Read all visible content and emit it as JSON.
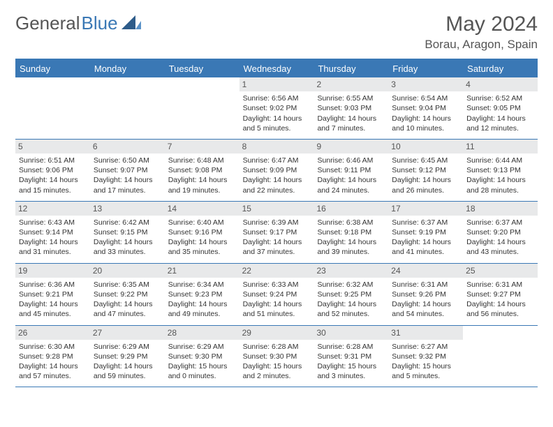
{
  "logo": {
    "part1": "General",
    "part2": "Blue"
  },
  "title": "May 2024",
  "location": "Borau, Aragon, Spain",
  "colors": {
    "header_bg": "#3a78b5",
    "daynum_bg": "#e8e9ea",
    "text": "#555555",
    "body_text": "#333333",
    "bg": "#ffffff"
  },
  "typography": {
    "title_fontsize": 30,
    "location_fontsize": 17,
    "dayheader_fontsize": 13,
    "daynum_fontsize": 12,
    "cell_fontsize": 10.5
  },
  "day_names": [
    "Sunday",
    "Monday",
    "Tuesday",
    "Wednesday",
    "Thursday",
    "Friday",
    "Saturday"
  ],
  "weeks": [
    [
      {
        "empty": true
      },
      {
        "empty": true
      },
      {
        "empty": true
      },
      {
        "num": "1",
        "sunrise": "Sunrise: 6:56 AM",
        "sunset": "Sunset: 9:02 PM",
        "daylight1": "Daylight: 14 hours",
        "daylight2": "and 5 minutes."
      },
      {
        "num": "2",
        "sunrise": "Sunrise: 6:55 AM",
        "sunset": "Sunset: 9:03 PM",
        "daylight1": "Daylight: 14 hours",
        "daylight2": "and 7 minutes."
      },
      {
        "num": "3",
        "sunrise": "Sunrise: 6:54 AM",
        "sunset": "Sunset: 9:04 PM",
        "daylight1": "Daylight: 14 hours",
        "daylight2": "and 10 minutes."
      },
      {
        "num": "4",
        "sunrise": "Sunrise: 6:52 AM",
        "sunset": "Sunset: 9:05 PM",
        "daylight1": "Daylight: 14 hours",
        "daylight2": "and 12 minutes."
      }
    ],
    [
      {
        "num": "5",
        "sunrise": "Sunrise: 6:51 AM",
        "sunset": "Sunset: 9:06 PM",
        "daylight1": "Daylight: 14 hours",
        "daylight2": "and 15 minutes."
      },
      {
        "num": "6",
        "sunrise": "Sunrise: 6:50 AM",
        "sunset": "Sunset: 9:07 PM",
        "daylight1": "Daylight: 14 hours",
        "daylight2": "and 17 minutes."
      },
      {
        "num": "7",
        "sunrise": "Sunrise: 6:48 AM",
        "sunset": "Sunset: 9:08 PM",
        "daylight1": "Daylight: 14 hours",
        "daylight2": "and 19 minutes."
      },
      {
        "num": "8",
        "sunrise": "Sunrise: 6:47 AM",
        "sunset": "Sunset: 9:09 PM",
        "daylight1": "Daylight: 14 hours",
        "daylight2": "and 22 minutes."
      },
      {
        "num": "9",
        "sunrise": "Sunrise: 6:46 AM",
        "sunset": "Sunset: 9:11 PM",
        "daylight1": "Daylight: 14 hours",
        "daylight2": "and 24 minutes."
      },
      {
        "num": "10",
        "sunrise": "Sunrise: 6:45 AM",
        "sunset": "Sunset: 9:12 PM",
        "daylight1": "Daylight: 14 hours",
        "daylight2": "and 26 minutes."
      },
      {
        "num": "11",
        "sunrise": "Sunrise: 6:44 AM",
        "sunset": "Sunset: 9:13 PM",
        "daylight1": "Daylight: 14 hours",
        "daylight2": "and 28 minutes."
      }
    ],
    [
      {
        "num": "12",
        "sunrise": "Sunrise: 6:43 AM",
        "sunset": "Sunset: 9:14 PM",
        "daylight1": "Daylight: 14 hours",
        "daylight2": "and 31 minutes."
      },
      {
        "num": "13",
        "sunrise": "Sunrise: 6:42 AM",
        "sunset": "Sunset: 9:15 PM",
        "daylight1": "Daylight: 14 hours",
        "daylight2": "and 33 minutes."
      },
      {
        "num": "14",
        "sunrise": "Sunrise: 6:40 AM",
        "sunset": "Sunset: 9:16 PM",
        "daylight1": "Daylight: 14 hours",
        "daylight2": "and 35 minutes."
      },
      {
        "num": "15",
        "sunrise": "Sunrise: 6:39 AM",
        "sunset": "Sunset: 9:17 PM",
        "daylight1": "Daylight: 14 hours",
        "daylight2": "and 37 minutes."
      },
      {
        "num": "16",
        "sunrise": "Sunrise: 6:38 AM",
        "sunset": "Sunset: 9:18 PM",
        "daylight1": "Daylight: 14 hours",
        "daylight2": "and 39 minutes."
      },
      {
        "num": "17",
        "sunrise": "Sunrise: 6:37 AM",
        "sunset": "Sunset: 9:19 PM",
        "daylight1": "Daylight: 14 hours",
        "daylight2": "and 41 minutes."
      },
      {
        "num": "18",
        "sunrise": "Sunrise: 6:37 AM",
        "sunset": "Sunset: 9:20 PM",
        "daylight1": "Daylight: 14 hours",
        "daylight2": "and 43 minutes."
      }
    ],
    [
      {
        "num": "19",
        "sunrise": "Sunrise: 6:36 AM",
        "sunset": "Sunset: 9:21 PM",
        "daylight1": "Daylight: 14 hours",
        "daylight2": "and 45 minutes."
      },
      {
        "num": "20",
        "sunrise": "Sunrise: 6:35 AM",
        "sunset": "Sunset: 9:22 PM",
        "daylight1": "Daylight: 14 hours",
        "daylight2": "and 47 minutes."
      },
      {
        "num": "21",
        "sunrise": "Sunrise: 6:34 AM",
        "sunset": "Sunset: 9:23 PM",
        "daylight1": "Daylight: 14 hours",
        "daylight2": "and 49 minutes."
      },
      {
        "num": "22",
        "sunrise": "Sunrise: 6:33 AM",
        "sunset": "Sunset: 9:24 PM",
        "daylight1": "Daylight: 14 hours",
        "daylight2": "and 51 minutes."
      },
      {
        "num": "23",
        "sunrise": "Sunrise: 6:32 AM",
        "sunset": "Sunset: 9:25 PM",
        "daylight1": "Daylight: 14 hours",
        "daylight2": "and 52 minutes."
      },
      {
        "num": "24",
        "sunrise": "Sunrise: 6:31 AM",
        "sunset": "Sunset: 9:26 PM",
        "daylight1": "Daylight: 14 hours",
        "daylight2": "and 54 minutes."
      },
      {
        "num": "25",
        "sunrise": "Sunrise: 6:31 AM",
        "sunset": "Sunset: 9:27 PM",
        "daylight1": "Daylight: 14 hours",
        "daylight2": "and 56 minutes."
      }
    ],
    [
      {
        "num": "26",
        "sunrise": "Sunrise: 6:30 AM",
        "sunset": "Sunset: 9:28 PM",
        "daylight1": "Daylight: 14 hours",
        "daylight2": "and 57 minutes."
      },
      {
        "num": "27",
        "sunrise": "Sunrise: 6:29 AM",
        "sunset": "Sunset: 9:29 PM",
        "daylight1": "Daylight: 14 hours",
        "daylight2": "and 59 minutes."
      },
      {
        "num": "28",
        "sunrise": "Sunrise: 6:29 AM",
        "sunset": "Sunset: 9:30 PM",
        "daylight1": "Daylight: 15 hours",
        "daylight2": "and 0 minutes."
      },
      {
        "num": "29",
        "sunrise": "Sunrise: 6:28 AM",
        "sunset": "Sunset: 9:30 PM",
        "daylight1": "Daylight: 15 hours",
        "daylight2": "and 2 minutes."
      },
      {
        "num": "30",
        "sunrise": "Sunrise: 6:28 AM",
        "sunset": "Sunset: 9:31 PM",
        "daylight1": "Daylight: 15 hours",
        "daylight2": "and 3 minutes."
      },
      {
        "num": "31",
        "sunrise": "Sunrise: 6:27 AM",
        "sunset": "Sunset: 9:32 PM",
        "daylight1": "Daylight: 15 hours",
        "daylight2": "and 5 minutes."
      },
      {
        "empty": true
      }
    ]
  ]
}
